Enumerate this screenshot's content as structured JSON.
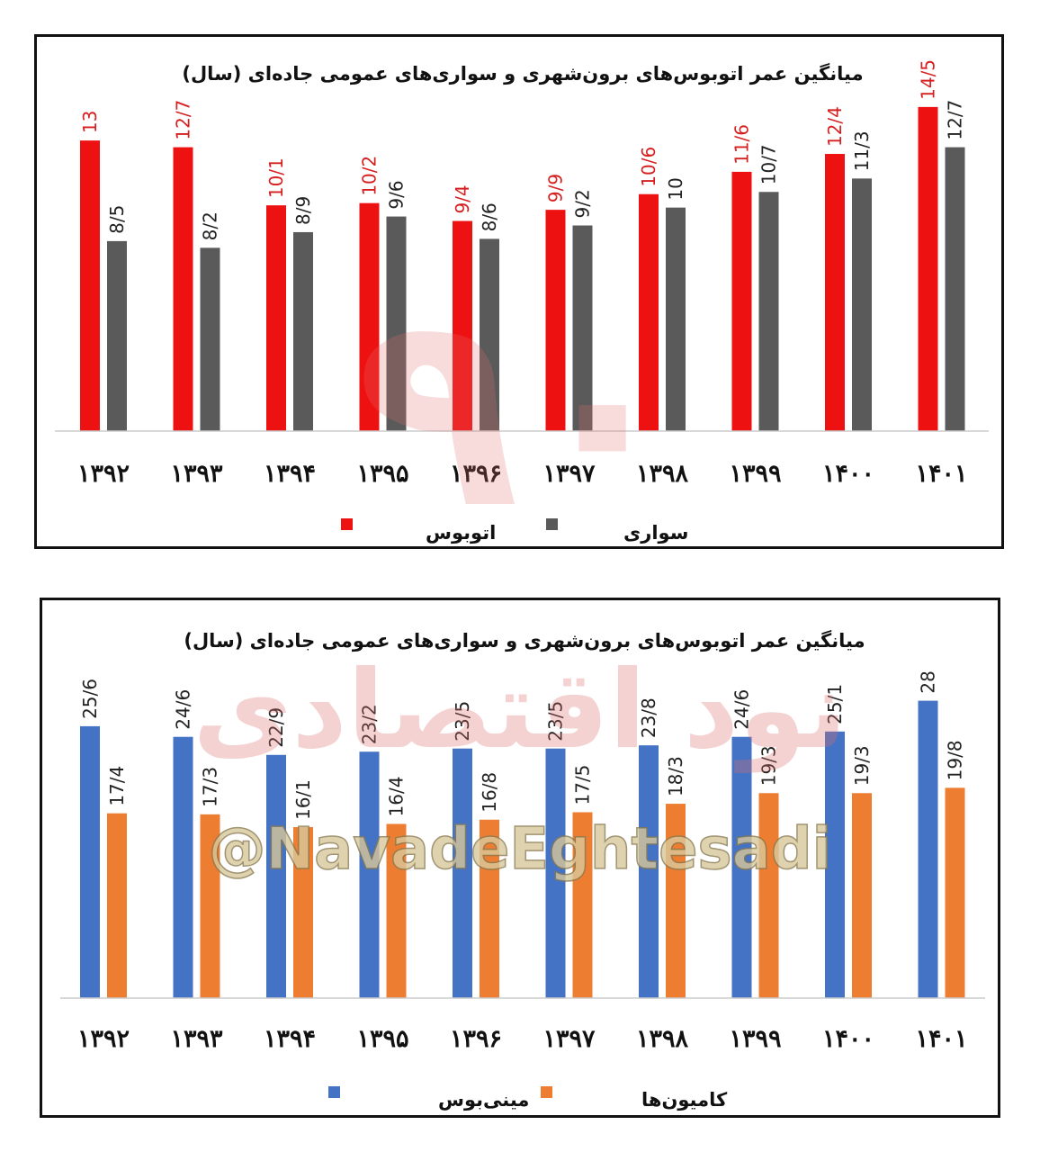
{
  "colors": {
    "bus": "#ee1111",
    "car": "#5a5a5a",
    "minibus": "#4472c4",
    "truck": "#ed7d31",
    "bus_label": "#d62020",
    "value_label": "#222222",
    "watermark_red": "#e8a0a0"
  },
  "watermark": {
    "handle": "@NavadeEghtesadi",
    "logo_text": "نود اقتصادی"
  },
  "chart_data": [
    {
      "type": "bar",
      "title": "میانگین عمر اتوبوس‌های برون‌شهری و سواری‌های عمومی جاده‌ای (سال)",
      "categories": [
        "۱۳۹۲",
        "۱۳۹۳",
        "۱۳۹۴",
        "۱۳۹۵",
        "۱۳۹۶",
        "۱۳۹۷",
        "۱۳۹۸",
        "۱۳۹۹",
        "۱۴۰۰",
        "۱۴۰۱"
      ],
      "series": [
        {
          "name": "اتوبوس",
          "values": [
            13,
            12.7,
            10.1,
            10.2,
            9.4,
            9.9,
            10.6,
            11.6,
            12.4,
            14.5
          ],
          "labels": [
            "13",
            "12/7",
            "10/1",
            "10/2",
            "9/4",
            "9/9",
            "10/6",
            "11/6",
            "12/4",
            "14/5"
          ]
        },
        {
          "name": "سواری",
          "values": [
            8.5,
            8.2,
            8.9,
            9.6,
            8.6,
            9.2,
            10,
            10.7,
            11.3,
            12.7
          ],
          "labels": [
            "8/5",
            "8/2",
            "8/9",
            "9/6",
            "8/6",
            "9/2",
            "10",
            "10/7",
            "11/3",
            "12/7"
          ]
        }
      ],
      "ylim": [
        0,
        16
      ]
    },
    {
      "type": "bar",
      "title": "میانگین عمر اتوبوس‌های برون‌شهری و سواری‌های عمومی جاده‌ای (سال)",
      "categories": [
        "۱۳۹۲",
        "۱۳۹۳",
        "۱۳۹۴",
        "۱۳۹۵",
        "۱۳۹۶",
        "۱۳۹۷",
        "۱۳۹۸",
        "۱۳۹۹",
        "۱۴۰۰",
        "۱۴۰۱"
      ],
      "series": [
        {
          "name": "مینی‌بوس",
          "values": [
            25.6,
            24.6,
            22.9,
            23.2,
            23.5,
            23.5,
            23.8,
            24.6,
            25.1,
            28
          ],
          "labels": [
            "25/6",
            "24/6",
            "22/9",
            "23/2",
            "23/5",
            "23/5",
            "23/8",
            "24/6",
            "25/1",
            "28"
          ]
        },
        {
          "name": "کامیون‌ها",
          "values": [
            17.4,
            17.3,
            16.1,
            16.4,
            16.8,
            17.5,
            18.3,
            19.3,
            19.3,
            19.8
          ],
          "labels": [
            "17/4",
            "17/3",
            "16/1",
            "16/4",
            "16/8",
            "17/5",
            "18/3",
            "19/3",
            "19/3",
            "19/8"
          ]
        }
      ],
      "ylim": [
        0,
        30
      ]
    }
  ]
}
